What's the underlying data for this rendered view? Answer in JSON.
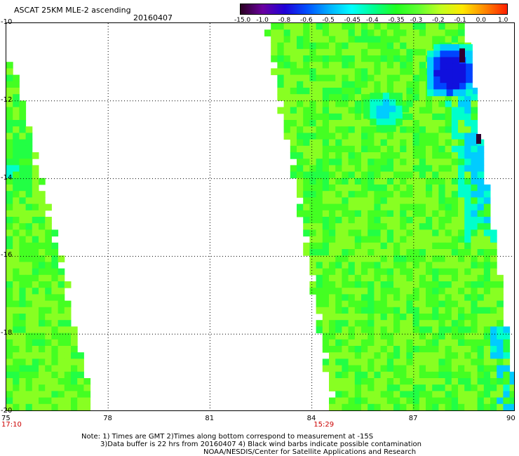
{
  "header": {
    "title": "ASCAT 25KM MLE-2 ascending",
    "date": "20160407"
  },
  "colorbar": {
    "labels": [
      "-15.0",
      "-1.0",
      "-0.8",
      "-0.6",
      "-0.5",
      "-0.45",
      "-0.4",
      "-0.35",
      "-0.3",
      "-0.2",
      "-0.1",
      "0.0",
      "1.0"
    ],
    "colors": [
      "#2a0020",
      "#6a00a0",
      "#2000d8",
      "#0050ff",
      "#00b0ff",
      "#00ffff",
      "#00ff90",
      "#20ff20",
      "#60ff30",
      "#c0ff20",
      "#ffe800",
      "#ff8800",
      "#ff2000"
    ]
  },
  "map": {
    "lat_labels": [
      "-10",
      "-12",
      "-14",
      "-16",
      "-18",
      "-20"
    ],
    "lon_labels": [
      "75",
      "78",
      "81",
      "84",
      "87",
      "90"
    ],
    "lat_range": [
      -20,
      -10
    ],
    "lon_range": [
      75,
      90
    ],
    "pass_times": [
      {
        "time": "17:10",
        "lon": 75
      },
      {
        "time": "15:29",
        "lon": 84.2
      }
    ],
    "swath_colors": {
      "base": "#88ff22",
      "alt": "#44ff22",
      "green": "#22ff44",
      "cyan": "#00ffcc",
      "lightblue": "#00ccff",
      "blue": "#0044ff",
      "deep": "#1010dd",
      "dark": "#300030"
    }
  },
  "notes": {
    "line1": "Note: 1) Times are GMT 2)Times along bottom correspond to measurement at -15S",
    "line2": "3)Data buffer is 22 hrs from 20160407 4) Black wind barbs indicate possible contamination",
    "line3": "NOAA/NESDIS/Center for Satellite Applications and Research"
  }
}
